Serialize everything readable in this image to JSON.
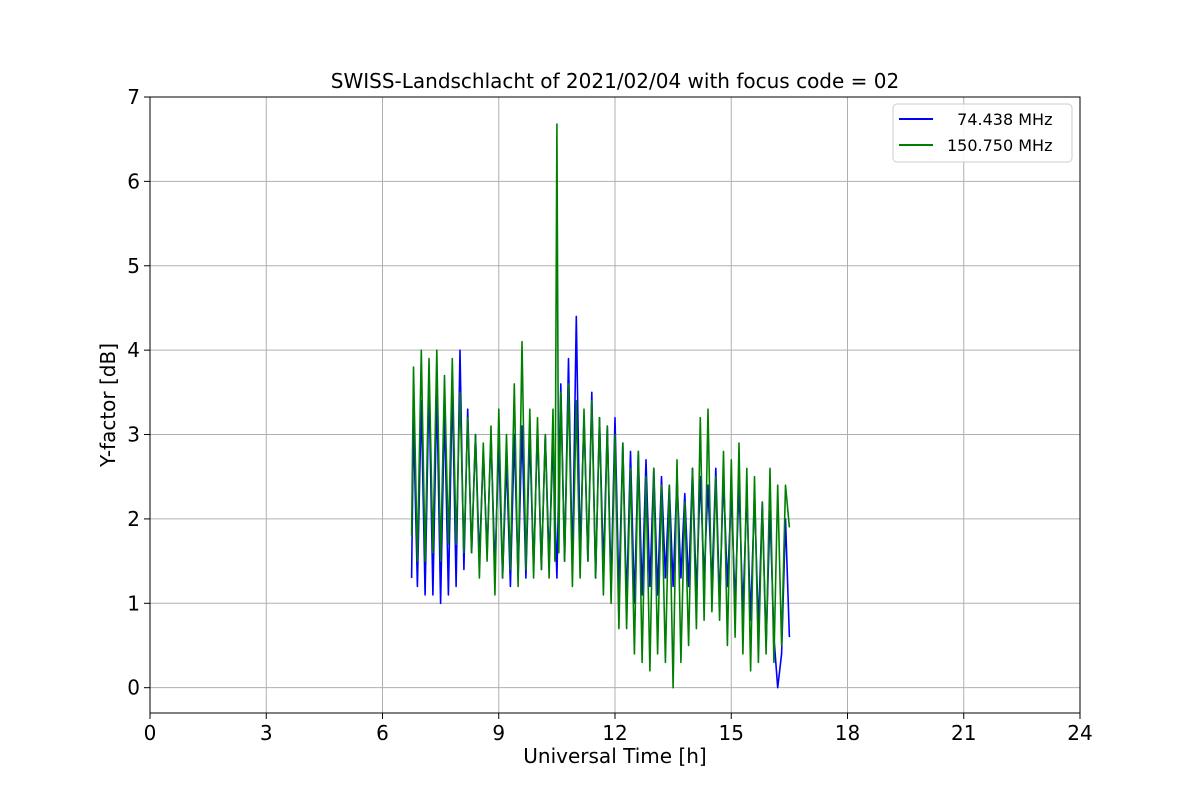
{
  "chart_data": {
    "type": "line",
    "title": "SWISS-Landschlacht of 2021/02/04 with focus code = 02",
    "xlabel": "Universal Time [h]",
    "ylabel": "Y-factor [dB]",
    "xlim": [
      0,
      24
    ],
    "ylim": [
      -0.3,
      7
    ],
    "xticks": [
      "0",
      "3",
      "6",
      "9",
      "12",
      "15",
      "18",
      "21",
      "24"
    ],
    "yticks": [
      "0",
      "1",
      "2",
      "3",
      "4",
      "5",
      "6",
      "7"
    ],
    "grid": true,
    "legend_position": "top-right",
    "series": [
      {
        "name": "74.438 MHz",
        "legend_label": "  74.438 MHz",
        "color": "#0000ff",
        "x": [
          6.75,
          6.8,
          6.9,
          7.0,
          7.1,
          7.2,
          7.3,
          7.4,
          7.5,
          7.6,
          7.7,
          7.8,
          7.9,
          8.0,
          8.1,
          8.2,
          8.3,
          8.4,
          8.5,
          8.6,
          8.7,
          8.8,
          8.9,
          9.0,
          9.1,
          9.2,
          9.3,
          9.4,
          9.5,
          9.6,
          9.7,
          9.8,
          9.9,
          10.0,
          10.1,
          10.2,
          10.3,
          10.4,
          10.5,
          10.6,
          10.7,
          10.8,
          10.9,
          11.0,
          11.1,
          11.2,
          11.3,
          11.4,
          11.5,
          11.6,
          11.7,
          11.8,
          11.9,
          12.0,
          12.1,
          12.2,
          12.3,
          12.4,
          12.5,
          12.6,
          12.7,
          12.8,
          12.9,
          13.0,
          13.1,
          13.2,
          13.3,
          13.4,
          13.5,
          13.6,
          13.7,
          13.8,
          13.9,
          14.0,
          14.1,
          14.2,
          14.3,
          14.4,
          14.5,
          14.6,
          14.7,
          14.8,
          14.9,
          15.0,
          15.1,
          15.2,
          15.3,
          15.4,
          15.5,
          15.6,
          15.7,
          15.8,
          15.9,
          16.0,
          16.1,
          16.2,
          16.3,
          16.4,
          16.5
        ],
        "y": [
          1.3,
          3.2,
          1.2,
          3.4,
          1.1,
          3.6,
          1.1,
          3.5,
          1.0,
          3.3,
          1.1,
          3.6,
          1.2,
          4.0,
          1.4,
          3.3,
          1.6,
          3.0,
          1.5,
          2.8,
          1.6,
          3.0,
          1.4,
          2.9,
          1.3,
          2.7,
          1.2,
          3.0,
          1.3,
          3.1,
          1.3,
          3.0,
          1.4,
          3.1,
          1.4,
          3.0,
          1.5,
          2.9,
          1.3,
          3.6,
          1.5,
          3.9,
          1.4,
          4.4,
          1.6,
          3.2,
          1.5,
          3.5,
          1.3,
          3.2,
          1.4,
          3.1,
          1.2,
          3.2,
          1.1,
          2.9,
          1.0,
          2.8,
          1.0,
          2.8,
          1.1,
          2.7,
          1.2,
          2.6,
          1.1,
          2.5,
          1.3,
          2.4,
          1.2,
          2.5,
          1.3,
          2.3,
          1.2,
          2.6,
          1.1,
          2.5,
          1.3,
          2.4,
          1.2,
          2.6,
          1.0,
          2.5,
          1.2,
          2.3,
          1.0,
          2.4,
          0.9,
          2.3,
          0.8,
          2.3,
          0.7,
          2.2,
          0.5,
          2.1,
          0.6,
          0.0,
          0.4,
          2.0,
          0.6
        ]
      },
      {
        "name": "150.750 MHz",
        "legend_label": "150.750 MHz",
        "color": "#008000",
        "x": [
          6.75,
          6.8,
          6.9,
          7.0,
          7.1,
          7.2,
          7.3,
          7.4,
          7.5,
          7.6,
          7.7,
          7.8,
          7.9,
          8.0,
          8.1,
          8.2,
          8.3,
          8.4,
          8.5,
          8.6,
          8.7,
          8.8,
          8.9,
          9.0,
          9.1,
          9.2,
          9.3,
          9.4,
          9.5,
          9.6,
          9.7,
          9.8,
          9.9,
          10.0,
          10.1,
          10.2,
          10.3,
          10.4,
          10.45,
          10.5,
          10.55,
          10.6,
          10.7,
          10.8,
          10.9,
          11.0,
          11.1,
          11.2,
          11.3,
          11.4,
          11.5,
          11.6,
          11.7,
          11.8,
          11.9,
          12.0,
          12.1,
          12.2,
          12.3,
          12.4,
          12.5,
          12.6,
          12.7,
          12.8,
          12.9,
          13.0,
          13.1,
          13.2,
          13.3,
          13.4,
          13.5,
          13.6,
          13.7,
          13.8,
          13.9,
          14.0,
          14.1,
          14.2,
          14.3,
          14.4,
          14.5,
          14.6,
          14.7,
          14.8,
          14.9,
          15.0,
          15.1,
          15.2,
          15.3,
          15.4,
          15.5,
          15.6,
          15.7,
          15.8,
          15.9,
          16.0,
          16.1,
          16.2,
          16.3,
          16.4,
          16.5
        ],
        "y": [
          1.8,
          3.8,
          1.5,
          4.0,
          1.5,
          3.9,
          1.6,
          4.0,
          1.5,
          3.7,
          1.7,
          3.9,
          1.7,
          3.5,
          1.6,
          3.2,
          1.6,
          3.0,
          1.3,
          2.9,
          1.5,
          3.1,
          1.1,
          3.3,
          1.3,
          3.0,
          1.4,
          3.6,
          1.2,
          4.1,
          1.4,
          3.3,
          1.3,
          3.2,
          1.4,
          3.0,
          1.3,
          3.3,
          1.5,
          6.68,
          1.6,
          3.5,
          1.5,
          3.6,
          1.2,
          3.4,
          1.3,
          3.3,
          1.5,
          3.4,
          1.3,
          3.2,
          1.1,
          3.1,
          1.0,
          3.0,
          0.7,
          2.9,
          0.7,
          2.6,
          0.4,
          2.8,
          0.3,
          2.5,
          0.2,
          2.6,
          0.4,
          2.4,
          0.3,
          2.4,
          0.0,
          2.7,
          0.3,
          2.2,
          0.5,
          2.6,
          0.7,
          3.2,
          0.8,
          3.3,
          0.9,
          2.5,
          0.8,
          2.8,
          0.5,
          2.7,
          0.6,
          2.9,
          0.4,
          2.6,
          0.2,
          2.5,
          0.3,
          2.2,
          0.4,
          2.6,
          0.3,
          2.4,
          0.5,
          2.4,
          1.9
        ]
      }
    ]
  }
}
